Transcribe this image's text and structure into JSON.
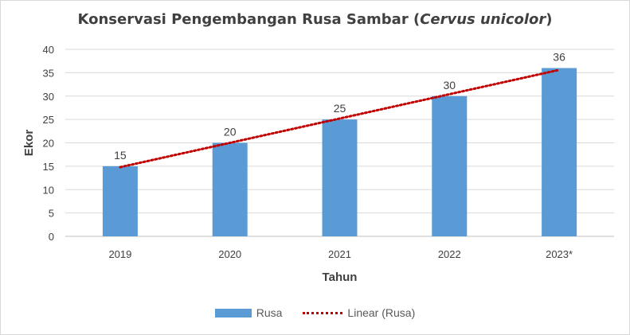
{
  "chart_data": {
    "type": "bar",
    "title_main": "Konservasi Pengembangan Rusa Sambar (",
    "title_italic": "Cervus unicolor",
    "title_end": ")",
    "xlabel": "Tahun",
    "ylabel": "Ekor",
    "categories": [
      "2019",
      "2020",
      "2021",
      "2022",
      "2023*"
    ],
    "series": [
      {
        "name": "Rusa",
        "values": [
          15,
          20,
          25,
          30,
          36
        ],
        "color": "#5b9bd5"
      }
    ],
    "trendline": {
      "name": "Linear (Rusa)",
      "type": "linear",
      "color": "#c00000"
    },
    "ylim": [
      0,
      40
    ],
    "yticks": [
      0,
      5,
      10,
      15,
      20,
      25,
      30,
      35,
      40
    ],
    "grid": true,
    "legend": "bottom"
  }
}
